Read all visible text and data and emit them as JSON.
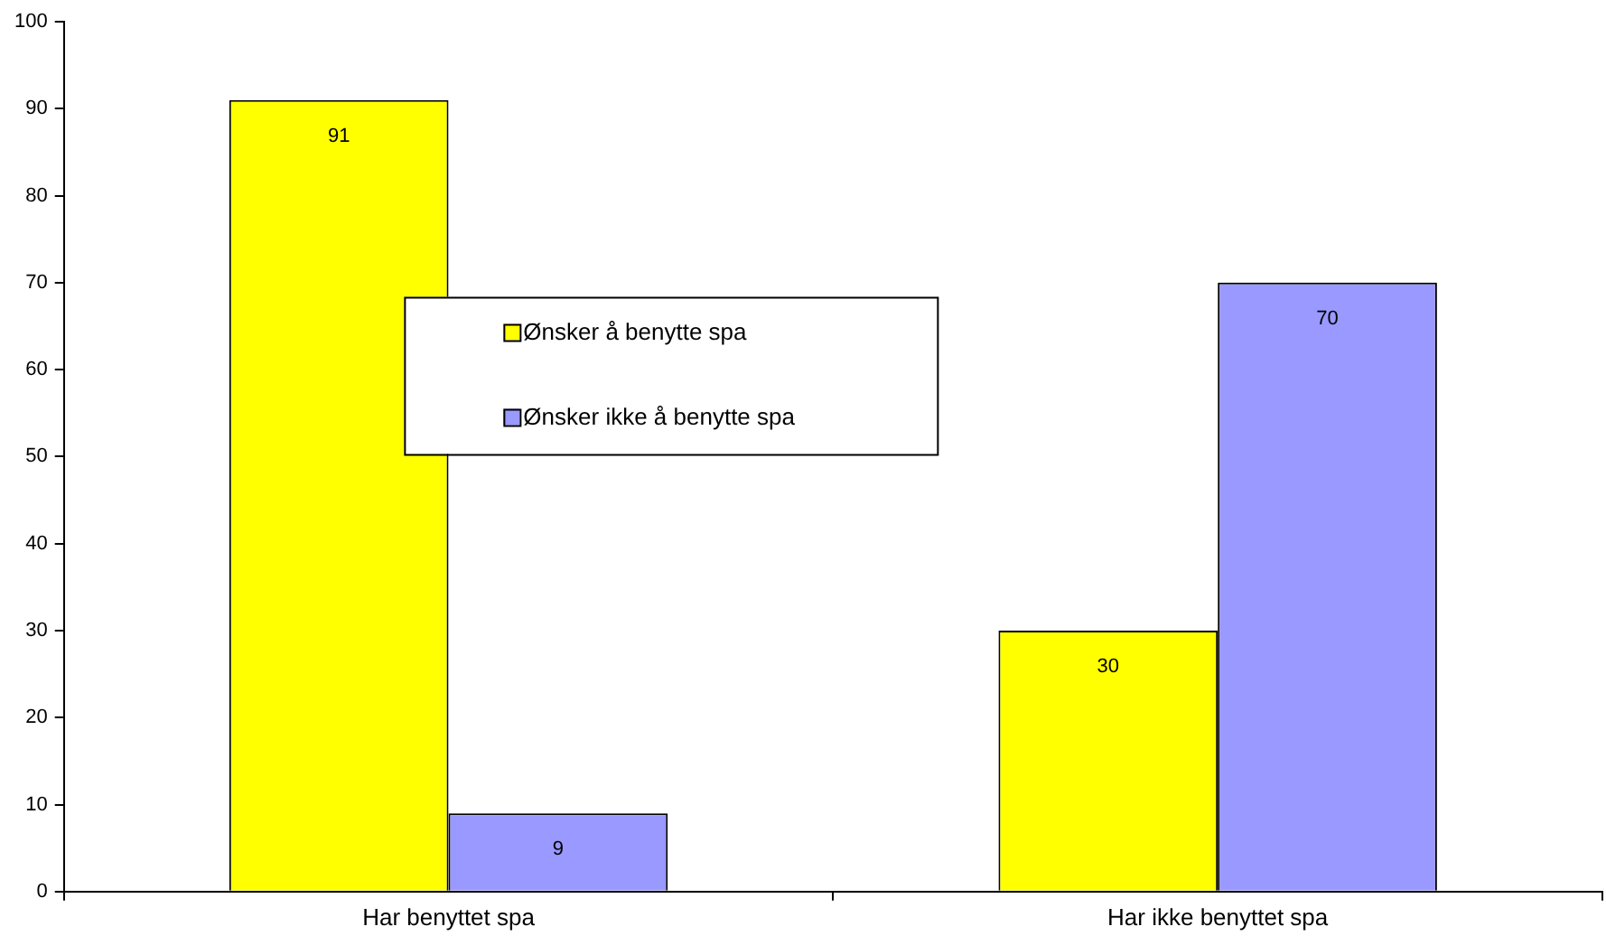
{
  "chart_data": {
    "type": "bar",
    "categories": [
      "Har benyttet spa",
      "Har ikke benyttet spa"
    ],
    "series": [
      {
        "name": "Ønsker å benytte spa",
        "color": "#ffff00",
        "values": [
          91,
          30
        ]
      },
      {
        "name": "Ønsker ikke å benytte spa",
        "color": "#9999ff",
        "values": [
          9,
          70
        ]
      }
    ],
    "ylim": [
      0,
      100
    ],
    "yticks": [
      0,
      10,
      20,
      30,
      40,
      50,
      60,
      70,
      80,
      90,
      100
    ],
    "grid": false,
    "legend": "center",
    "data_labels": true
  }
}
